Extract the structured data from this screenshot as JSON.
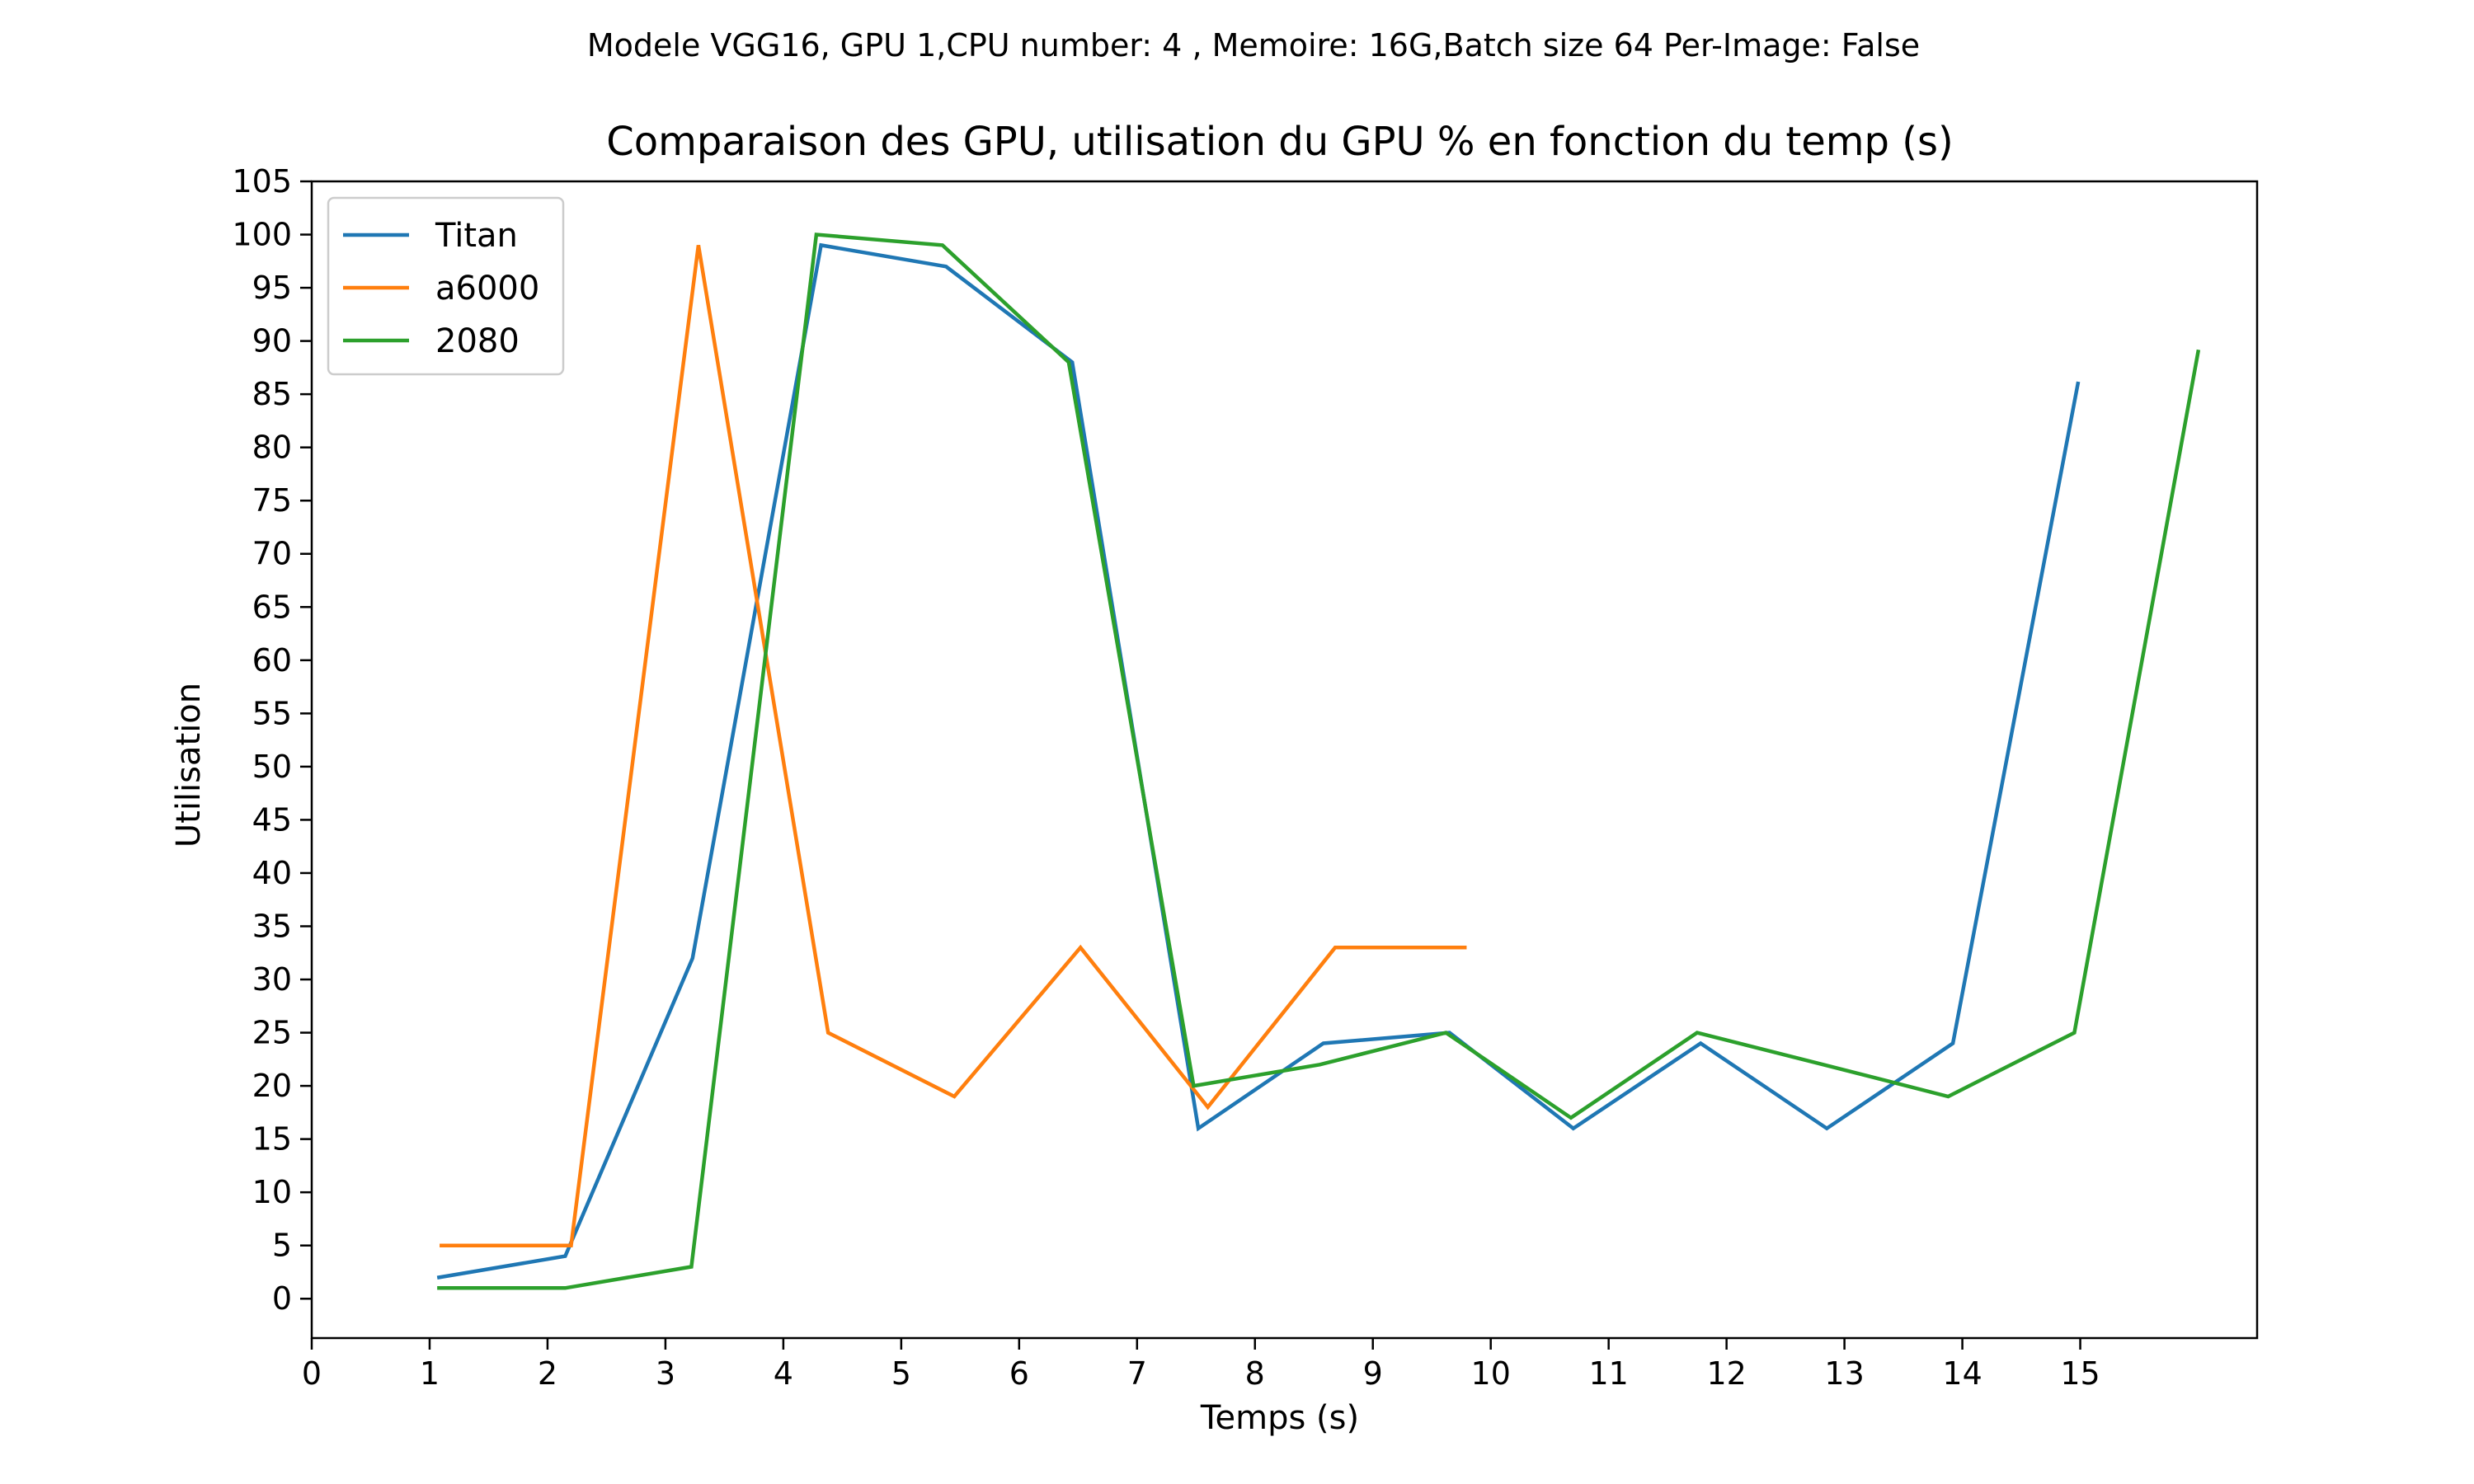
{
  "chart_data": {
    "type": "line",
    "suptitle": "Modele VGG16, GPU 1,CPU number: 4 , Memoire: 16G,Batch size 64 Per-Image: False",
    "title": "Comparaison des GPU, utilisation du GPU % en fonction du temp (s)",
    "xlabel": "Temps (s)",
    "ylabel": "Utilisation",
    "xlim": [
      0,
      16.5
    ],
    "ylim": [
      -3.7,
      105
    ],
    "xticks": [
      "0",
      "1",
      "2",
      "3",
      "4",
      "5",
      "6",
      "7",
      "8",
      "9",
      "10",
      "11",
      "12",
      "13",
      "14",
      "15"
    ],
    "yticks": [
      "0",
      "5",
      "10",
      "15",
      "20",
      "25",
      "30",
      "35",
      "40",
      "45",
      "50",
      "55",
      "60",
      "65",
      "70",
      "75",
      "80",
      "85",
      "90",
      "95",
      "100",
      "105"
    ],
    "legend_position": "upper-left",
    "grid": false,
    "series": [
      {
        "name": "Titan",
        "color": "#1f77b4",
        "x": [
          1.08,
          2.15,
          3.23,
          4.32,
          5.38,
          6.45,
          7.52,
          8.58,
          9.65,
          10.7,
          11.78,
          12.85,
          13.92,
          14.98
        ],
        "y": [
          2,
          4,
          32,
          99,
          97,
          88,
          16,
          24,
          25,
          16,
          24,
          16,
          24,
          86
        ]
      },
      {
        "name": "a6000",
        "color": "#ff7f0e",
        "x": [
          1.1,
          2.2,
          3.28,
          4.38,
          5.45,
          6.52,
          7.6,
          8.68,
          9.78
        ],
        "y": [
          5,
          5,
          99,
          25,
          19,
          33,
          18,
          33,
          33
        ]
      },
      {
        "name": "2080",
        "color": "#2ca02c",
        "x": [
          1.08,
          2.15,
          3.22,
          4.28,
          5.35,
          6.42,
          7.48,
          8.55,
          9.62,
          10.68,
          11.75,
          12.82,
          13.88,
          14.95,
          16.0
        ],
        "y": [
          1,
          1,
          3,
          100,
          99,
          88,
          20,
          22,
          25,
          17,
          25,
          22,
          19,
          25,
          89
        ]
      }
    ]
  }
}
